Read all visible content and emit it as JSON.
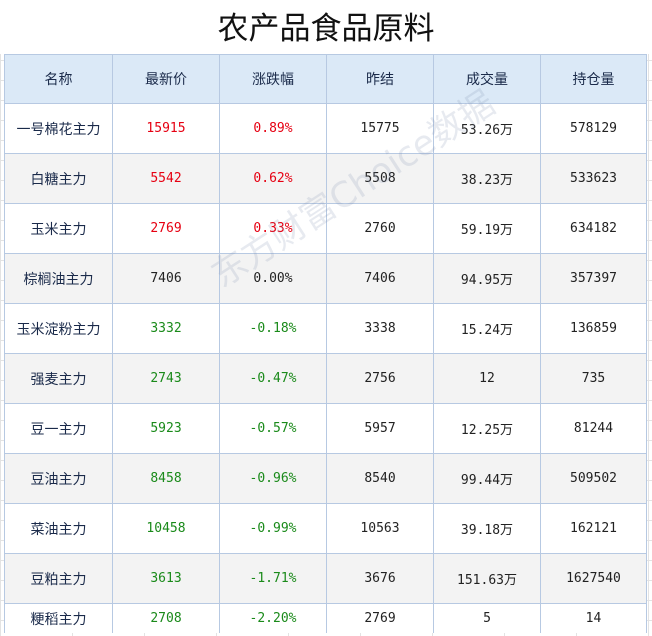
{
  "title": "农产品食品原料",
  "watermark": "东方财富Choice数据",
  "headers": {
    "name": "名称",
    "latest": "最新价",
    "change": "涨跌幅",
    "prev_close": "昨结",
    "volume": "成交量",
    "open_interest": "持仓量"
  },
  "colors": {
    "up": "#e60012",
    "down": "#1a8a1a",
    "header_bg": "#dbe9f7"
  },
  "rows": [
    {
      "name": "一号棉花主力",
      "latest": "15915",
      "change": "0.89%",
      "prev_close": "15775",
      "volume": "53.26万",
      "open_interest": "578129",
      "direction": "up"
    },
    {
      "name": "白糖主力",
      "latest": "5542",
      "change": "0.62%",
      "prev_close": "5508",
      "volume": "38.23万",
      "open_interest": "533623",
      "direction": "up"
    },
    {
      "name": "玉米主力",
      "latest": "2769",
      "change": "0.33%",
      "prev_close": "2760",
      "volume": "59.19万",
      "open_interest": "634182",
      "direction": "up"
    },
    {
      "name": "棕榈油主力",
      "latest": "7406",
      "change": "0.00%",
      "prev_close": "7406",
      "volume": "94.95万",
      "open_interest": "357397",
      "direction": "flat"
    },
    {
      "name": "玉米淀粉主力",
      "latest": "3332",
      "change": "-0.18%",
      "prev_close": "3338",
      "volume": "15.24万",
      "open_interest": "136859",
      "direction": "down"
    },
    {
      "name": "强麦主力",
      "latest": "2743",
      "change": "-0.47%",
      "prev_close": "2756",
      "volume": "12",
      "open_interest": "735",
      "direction": "down"
    },
    {
      "name": "豆一主力",
      "latest": "5923",
      "change": "-0.57%",
      "prev_close": "5957",
      "volume": "12.25万",
      "open_interest": "81244",
      "direction": "down"
    },
    {
      "name": "豆油主力",
      "latest": "8458",
      "change": "-0.96%",
      "prev_close": "8540",
      "volume": "99.44万",
      "open_interest": "509502",
      "direction": "down"
    },
    {
      "name": "菜油主力",
      "latest": "10458",
      "change": "-0.99%",
      "prev_close": "10563",
      "volume": "39.18万",
      "open_interest": "162121",
      "direction": "down"
    },
    {
      "name": "豆粕主力",
      "latest": "3613",
      "change": "-1.71%",
      "prev_close": "3676",
      "volume": "151.63万",
      "open_interest": "1627540",
      "direction": "down"
    },
    {
      "name": "粳稻主力",
      "latest": "2708",
      "change": "-2.20%",
      "prev_close": "2769",
      "volume": "5",
      "open_interest": "14",
      "direction": "down"
    }
  ]
}
